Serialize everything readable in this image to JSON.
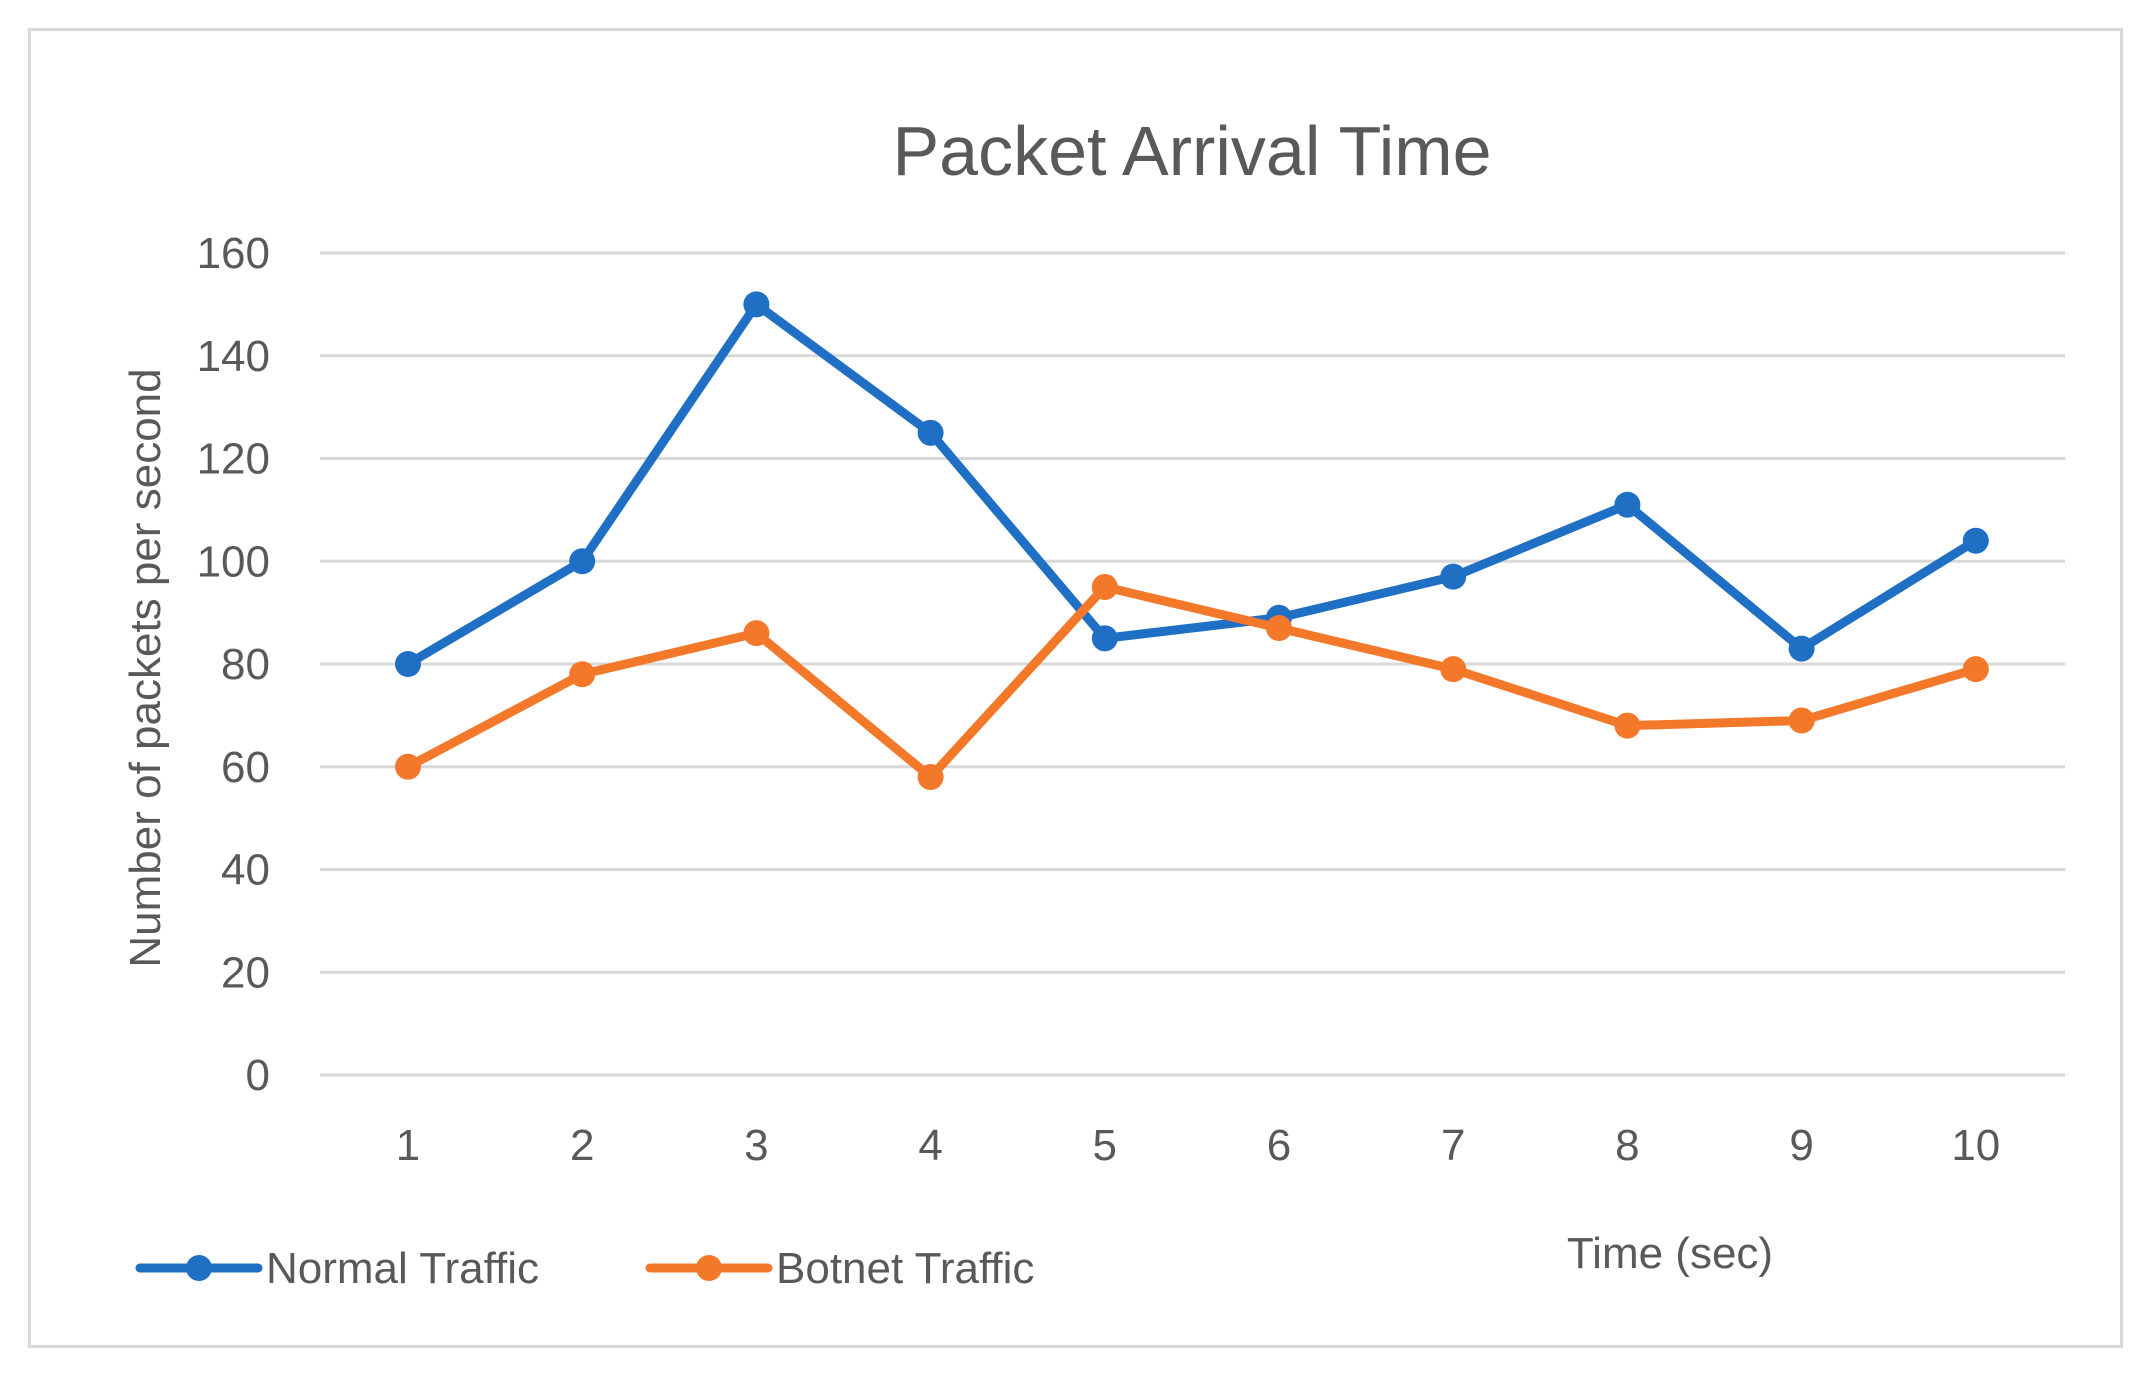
{
  "chart_data": {
    "type": "line",
    "title": "Packet Arrival Time",
    "xlabel": "Time (sec)",
    "ylabel": "Number  of packets per second",
    "categories": [
      "1",
      "2",
      "3",
      "4",
      "5",
      "6",
      "7",
      "8",
      "9",
      "10"
    ],
    "ylim": [
      0,
      160
    ],
    "yticks": [
      0,
      20,
      40,
      60,
      80,
      100,
      120,
      140,
      160
    ],
    "grid": true,
    "legend_position": "bottom-left",
    "series": [
      {
        "name": "Normal Traffic",
        "color": "#1f6fc5",
        "values": [
          80,
          100,
          150,
          125,
          85,
          89,
          97,
          111,
          83,
          104
        ]
      },
      {
        "name": "Botnet Traffic",
        "color": "#f4782a",
        "values": [
          60,
          78,
          86,
          58,
          95,
          87,
          79,
          68,
          69,
          79
        ]
      }
    ]
  }
}
